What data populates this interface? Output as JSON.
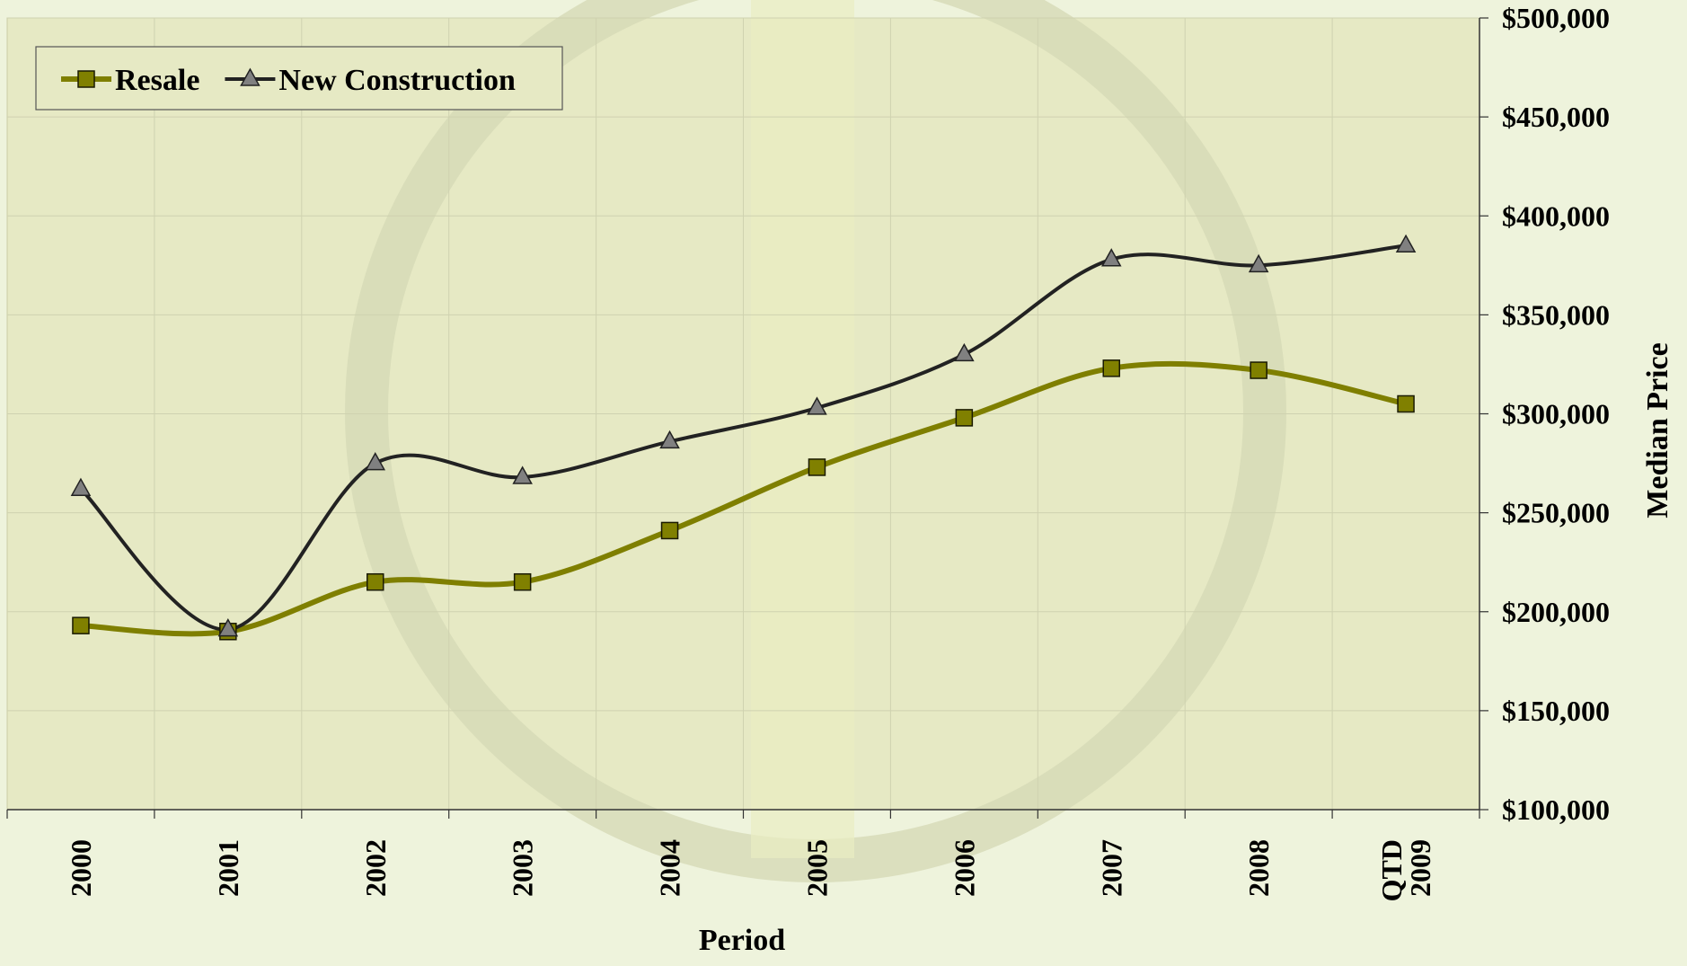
{
  "chart_data": {
    "type": "line",
    "categories": [
      "2000",
      "2001",
      "2002",
      "2003",
      "2004",
      "2005",
      "2006",
      "2007",
      "2008",
      "QTD 2009"
    ],
    "series": [
      {
        "name": "Resale",
        "color": "#7f7f00",
        "marker": "square",
        "values": [
          193000,
          190000,
          215000,
          215000,
          241000,
          273000,
          298000,
          323000,
          322000,
          305000
        ]
      },
      {
        "name": "New Construction",
        "color": "#222222",
        "marker": "triangle",
        "values": [
          262000,
          191000,
          275000,
          268000,
          286000,
          303000,
          330000,
          378000,
          375000,
          385000
        ]
      }
    ],
    "x_label": "Period",
    "y_label": "Median Price",
    "ylim": [
      100000,
      500000
    ],
    "yticks": [
      {
        "value": 100000,
        "label": "$100,000"
      },
      {
        "value": 150000,
        "label": "$150,000"
      },
      {
        "value": 200000,
        "label": "$200,000"
      },
      {
        "value": 250000,
        "label": "$250,000"
      },
      {
        "value": 300000,
        "label": "$300,000"
      },
      {
        "value": 350000,
        "label": "$350,000"
      },
      {
        "value": 400000,
        "label": "$400,000"
      },
      {
        "value": 450000,
        "label": "$450,000"
      },
      {
        "value": 500000,
        "label": "$500,000"
      }
    ],
    "grid": true,
    "y_axis_side": "right",
    "legend_position": "upper left",
    "smooth": true
  }
}
